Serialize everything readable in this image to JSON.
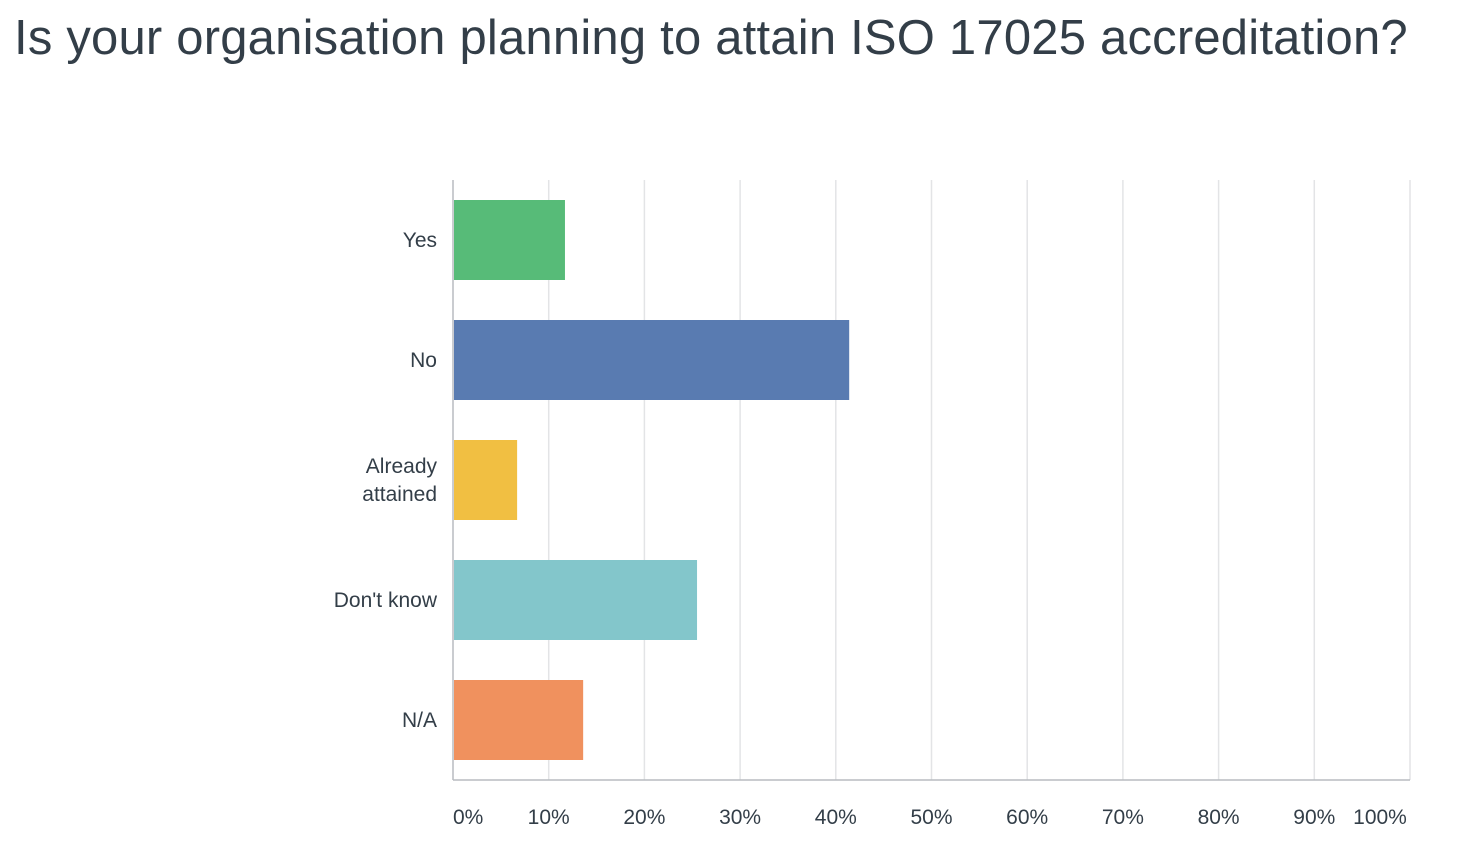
{
  "title": "Is your organisation planning to attain ISO 17025 accreditation?",
  "chart_data": {
    "type": "bar",
    "orientation": "horizontal",
    "title": "Is your organisation planning to attain ISO 17025 accreditation?",
    "categories": [
      {
        "label": [
          "Yes"
        ],
        "value": 11.7,
        "color": "#57bb78"
      },
      {
        "label": [
          "No"
        ],
        "value": 41.4,
        "color": "#597bb1"
      },
      {
        "label": [
          "Already",
          "attained"
        ],
        "value": 6.7,
        "color": "#f1bf42"
      },
      {
        "label": [
          "Don't know"
        ],
        "value": 25.5,
        "color": "#83c6cb"
      },
      {
        "label": [
          "N/A"
        ],
        "value": 13.6,
        "color": "#f0915e"
      }
    ],
    "x_ticks": [
      "0%",
      "10%",
      "20%",
      "30%",
      "40%",
      "50%",
      "60%",
      "70%",
      "80%",
      "90%",
      "100%"
    ],
    "xlim": [
      0,
      100
    ],
    "xlabel": "",
    "ylabel": "",
    "grid": true,
    "legend": "none"
  }
}
